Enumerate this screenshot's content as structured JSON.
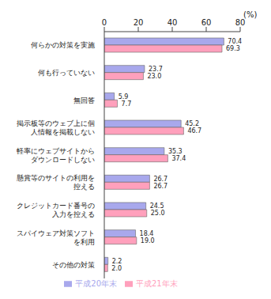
{
  "chart_data": {
    "type": "bar",
    "orientation": "horizontal",
    "x_label": "(%)",
    "categories": [
      "何らかの対策を実施",
      "何も行っていない",
      "無回答",
      "掲示板等のウェブ上に個人情報を掲載しない",
      "軽率にウェブサイトからダウンロードしない",
      "懸賞等のサイトの利用を控える",
      "クレジットカード番号の入力を控える",
      "スパイウェア対策ソフトを利用",
      "その他の対策"
    ],
    "series": [
      {
        "name": "平成20年末",
        "color": "#a8a8ec",
        "values": [
          70.4,
          23.7,
          5.9,
          45.2,
          35.3,
          26.7,
          24.5,
          18.4,
          2.2
        ],
        "value_labels": [
          "70.4",
          "23.7",
          "5.9",
          "45.2",
          "35.3",
          "26.7",
          "24.5",
          "18.4",
          "2.2"
        ]
      },
      {
        "name": "平成21年末",
        "color": "#ffa0bc",
        "values": [
          69.3,
          23.0,
          7.7,
          46.7,
          37.4,
          26.7,
          25.0,
          19.0,
          2.0
        ],
        "value_labels": [
          "69.3",
          "23.0",
          "7.7",
          "46.7",
          "37.4",
          "26.7",
          "25.0",
          "19.0",
          "2.0"
        ]
      }
    ],
    "xlim": [
      0,
      80
    ],
    "xticks": [
      0,
      20,
      40,
      60,
      80
    ],
    "grid": false,
    "data_labels": true,
    "legend": "bottom"
  }
}
